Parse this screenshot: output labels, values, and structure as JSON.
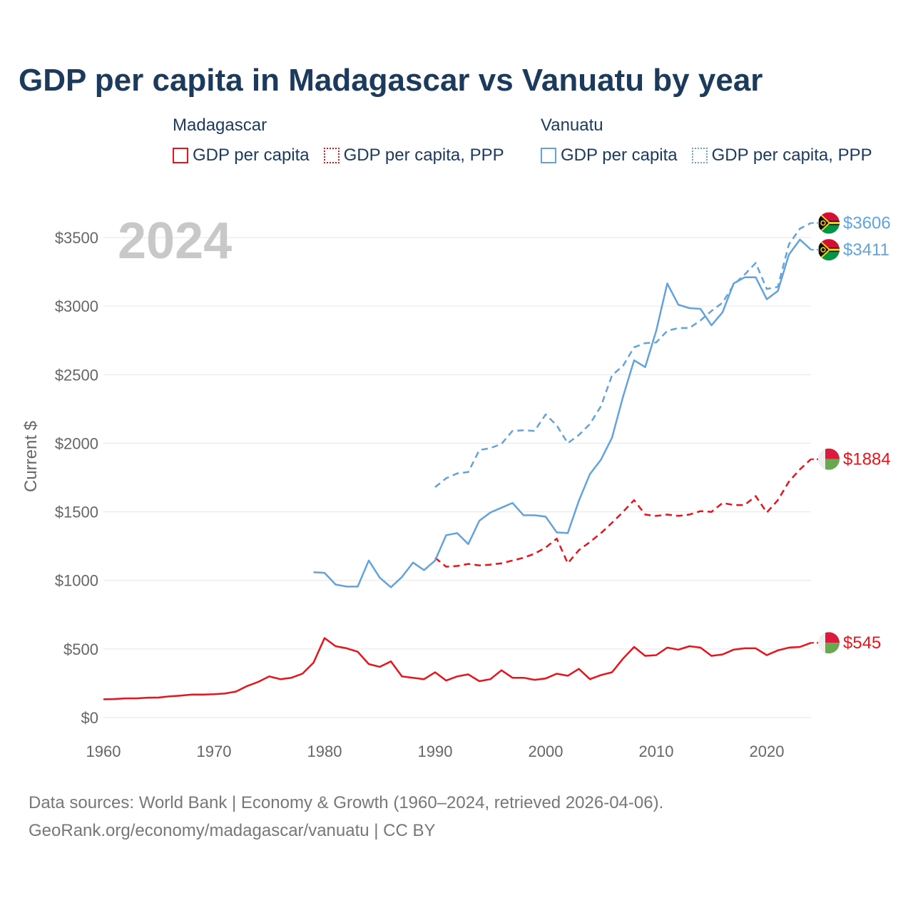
{
  "title": "GDP per capita in Madagascar vs Vanuatu by year",
  "legend": {
    "groups": [
      {
        "name": "Madagascar",
        "color": "#e8141b",
        "items": [
          "GDP per capita",
          "GDP per capita, PPP"
        ]
      },
      {
        "name": "Vanuatu",
        "color": "#62a3de",
        "items": [
          "GDP per capita",
          "GDP per capita, PPP"
        ]
      }
    ]
  },
  "colors": {
    "madagascar": "#e8141b",
    "vanuatu": "#62a3de",
    "grid": "#e6e6e6",
    "axis_text": "#666666",
    "year_watermark": "#c8c8c8"
  },
  "chart_data": {
    "type": "line",
    "title": "GDP per capita in Madagascar vs Vanuatu by year",
    "year_label": "2024",
    "xlabel": "",
    "ylabel": "Current $",
    "xlim": [
      1960,
      2024
    ],
    "ylim": [
      0,
      3700
    ],
    "x_ticks": [
      1960,
      1970,
      1980,
      1990,
      2000,
      2010,
      2020
    ],
    "x_tick_labels": [
      "1960",
      "1970",
      "1980",
      "1990",
      "2000",
      "2010",
      "2020"
    ],
    "y_ticks": [
      0,
      500,
      1000,
      1500,
      2000,
      2500,
      3000,
      3500
    ],
    "y_tick_labels": [
      "$0",
      "$500",
      "$1000",
      "$1500",
      "$2000",
      "$2500",
      "$3000",
      "$3500"
    ],
    "grid": true,
    "series": [
      {
        "name": "Madagascar GDP per capita",
        "country": "Madagascar",
        "style": "solid",
        "color": "#e8141b",
        "start_year": 1960,
        "end_label": "$545",
        "end_value": 545,
        "values": [
          133,
          135,
          140,
          140,
          145,
          146,
          155,
          160,
          168,
          168,
          170,
          176,
          190,
          230,
          260,
          300,
          280,
          290,
          320,
          400,
          580,
          520,
          505,
          480,
          390,
          370,
          410,
          300,
          290,
          280,
          330,
          270,
          300,
          315,
          265,
          280,
          345,
          290,
          290,
          275,
          285,
          320,
          305,
          355,
          280,
          310,
          330,
          430,
          515,
          450,
          455,
          510,
          495,
          520,
          510,
          450,
          460,
          495,
          505,
          505,
          455,
          490,
          510,
          515,
          545
        ]
      },
      {
        "name": "Madagascar GDP per capita, PPP",
        "country": "Madagascar",
        "style": "dashed",
        "color": "#e8141b",
        "start_year": 1990,
        "end_label": "$1884",
        "end_value": 1884,
        "values": [
          1165,
          1100,
          1105,
          1120,
          1110,
          1115,
          1125,
          1145,
          1165,
          1195,
          1240,
          1305,
          1125,
          1220,
          1280,
          1345,
          1420,
          1500,
          1585,
          1480,
          1470,
          1480,
          1470,
          1480,
          1505,
          1500,
          1565,
          1550,
          1550,
          1615,
          1495,
          1585,
          1720,
          1810,
          1884
        ]
      },
      {
        "name": "Vanuatu GDP per capita",
        "country": "Vanuatu",
        "style": "solid",
        "color": "#62a3de",
        "start_year": 1979,
        "end_label": "$3411",
        "end_value": 3411,
        "values": [
          1060,
          1055,
          970,
          955,
          955,
          1145,
          1020,
          950,
          1025,
          1130,
          1075,
          1145,
          1330,
          1345,
          1265,
          1435,
          1495,
          1530,
          1565,
          1475,
          1475,
          1465,
          1350,
          1345,
          1580,
          1775,
          1880,
          2040,
          2340,
          2605,
          2555,
          2820,
          3165,
          3010,
          2985,
          2980,
          2860,
          2955,
          3165,
          3210,
          3210,
          3050,
          3110,
          3375,
          3485,
          3411
        ]
      },
      {
        "name": "Vanuatu GDP per capita, PPP",
        "country": "Vanuatu",
        "style": "dashed",
        "color": "#62a3de",
        "start_year": 1990,
        "end_label": "$3606",
        "end_value": 3606,
        "values": [
          1680,
          1745,
          1780,
          1790,
          1950,
          1965,
          1995,
          2090,
          2095,
          2090,
          2210,
          2130,
          2000,
          2060,
          2140,
          2270,
          2495,
          2565,
          2700,
          2730,
          2735,
          2820,
          2840,
          2840,
          2895,
          2965,
          3025,
          3155,
          3230,
          3315,
          3125,
          3140,
          3450,
          3565,
          3606
        ]
      }
    ]
  },
  "footer": {
    "line1": "Data sources: World Bank | Economy & Growth (1960–2024, retrieved 2026-04-06).",
    "line2": "GeoRank.org/economy/madagascar/vanuatu | CC BY"
  }
}
